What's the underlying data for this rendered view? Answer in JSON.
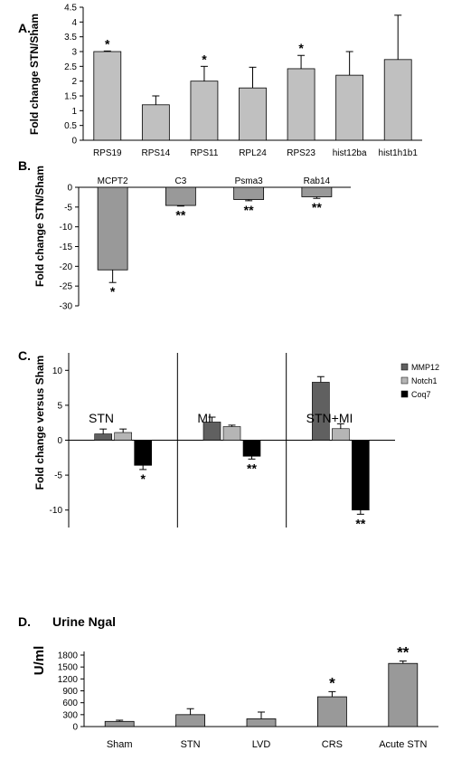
{
  "chart_data": [
    {
      "type": "bar",
      "panel_label": "A.",
      "ylabel": "Fold change STN/Sham",
      "yticks": [
        "0",
        "0.5",
        "1",
        "1.5",
        "2",
        "2.5",
        "3",
        "3.5",
        "4",
        "4.5"
      ],
      "ylim": [
        0,
        4.5
      ],
      "categories": [
        "RPS19",
        "RPS14",
        "RPS11",
        "RPL24",
        "RPS23",
        "hist12ba",
        "hist1h1b1"
      ],
      "values": [
        3.0,
        1.2,
        2.0,
        1.77,
        2.42,
        2.2,
        2.73
      ],
      "errors": [
        0.02,
        0.3,
        0.5,
        0.7,
        0.45,
        0.8,
        1.5
      ],
      "annotations": [
        "*",
        "",
        "*",
        "",
        "*",
        "",
        ""
      ],
      "color": "#c0c0c0"
    },
    {
      "type": "bar",
      "panel_label": "B.",
      "ylabel": "Fold change STN/Sham",
      "yticks": [
        "0",
        "-5",
        "-10",
        "-15",
        "-20",
        "-25",
        "-30"
      ],
      "ylim": [
        -30,
        0
      ],
      "categories": [
        "MCPT2",
        "C3",
        "Psma3",
        "Rab14"
      ],
      "values": [
        -20.9,
        -4.6,
        -3.1,
        -2.4
      ],
      "errors": [
        3.2,
        0.15,
        0.3,
        0.4
      ],
      "annotations": [
        "*",
        "**",
        "**",
        "**"
      ],
      "color": "#999999"
    },
    {
      "type": "bar",
      "panel_label": "C.",
      "ylabel": "Fold change versus Sham",
      "yticks": [
        "-10",
        "-5",
        "0",
        "5",
        "10"
      ],
      "ylim": [
        -12.5,
        12.5
      ],
      "groups": [
        "STN",
        "MI",
        "STN+MI"
      ],
      "series": [
        {
          "name": "MMP12",
          "color": "#606060",
          "values": [
            0.9,
            2.6,
            8.3
          ],
          "errors": [
            0.7,
            0.7,
            0.8
          ],
          "annotations": [
            "",
            "",
            ""
          ]
        },
        {
          "name": "Notch1",
          "color": "#b5b5b5",
          "values": [
            1.1,
            1.95,
            1.65
          ],
          "errors": [
            0.5,
            0.2,
            0.7
          ],
          "annotations": [
            "",
            "",
            ""
          ]
        },
        {
          "name": "Coq7",
          "color": "#000000",
          "values": [
            -3.6,
            -2.3,
            -10.0
          ],
          "errors": [
            0.6,
            0.4,
            0.6
          ],
          "annotations": [
            "*",
            "**",
            "**"
          ]
        }
      ]
    },
    {
      "type": "bar",
      "panel_label": "D.",
      "title": "Urine Ngal",
      "ylabel": "U/ml",
      "yticks": [
        "0",
        "300",
        "600",
        "900",
        "1200",
        "1500",
        "1800"
      ],
      "ylim": [
        0,
        1800
      ],
      "categories": [
        "Sham",
        "STN",
        "LVD",
        "CRS",
        "Acute STN"
      ],
      "values": [
        130,
        300,
        195,
        750,
        1590
      ],
      "errors": [
        30,
        150,
        170,
        130,
        60
      ],
      "annotations": [
        "",
        "",
        "",
        "*",
        "**"
      ],
      "color": "#999999"
    }
  ]
}
